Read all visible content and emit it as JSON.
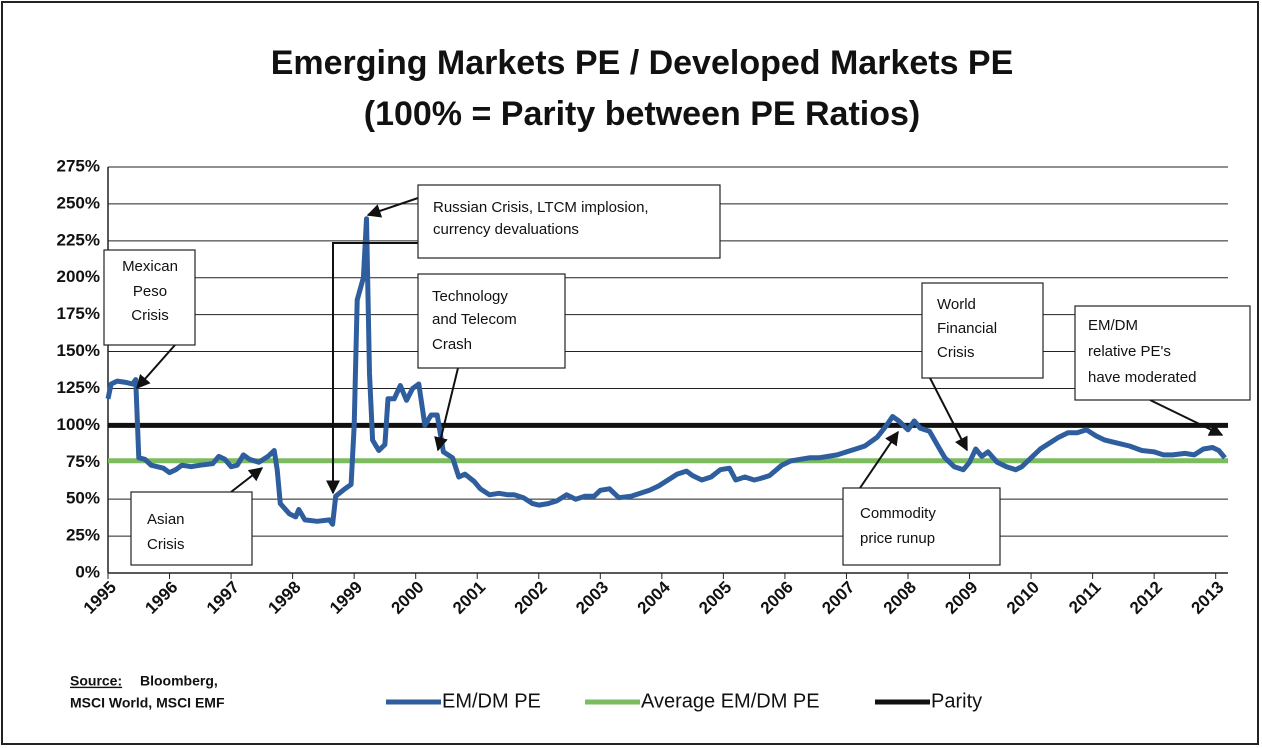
{
  "chart_data": {
    "type": "line",
    "title": "Emerging Markets PE / Developed Markets PE",
    "subtitle": "(100% = Parity between PE Ratios)",
    "xlim": [
      1995,
      2013.2
    ],
    "xticks": [
      1995,
      1996,
      1997,
      1998,
      1999,
      2000,
      2001,
      2002,
      2003,
      2004,
      2005,
      2006,
      2007,
      2008,
      2009,
      2010,
      2011,
      2012,
      2013
    ],
    "ylim": [
      0,
      275
    ],
    "yticks": [
      {
        "value": 0,
        "label": "0%"
      },
      {
        "value": 25,
        "label": "25%"
      },
      {
        "value": 50,
        "label": "50%"
      },
      {
        "value": 75,
        "label": "75%"
      },
      {
        "value": 100,
        "label": "100%"
      },
      {
        "value": 125,
        "label": "125%"
      },
      {
        "value": 150,
        "label": "150%"
      },
      {
        "value": 175,
        "label": "175%"
      },
      {
        "value": 200,
        "label": "200%"
      },
      {
        "value": 225,
        "label": "225%"
      },
      {
        "value": 250,
        "label": "250%"
      },
      {
        "value": 275,
        "label": "275%"
      }
    ],
    "grid": true,
    "series": [
      {
        "name": "EM/DM PE",
        "color": "#2f5e9e",
        "x": [
          1995.0,
          1995.05,
          1995.15,
          1995.3,
          1995.4,
          1995.45,
          1995.5,
          1995.6,
          1995.7,
          1995.9,
          1996.0,
          1996.1,
          1996.2,
          1996.35,
          1996.5,
          1996.7,
          1996.8,
          1996.9,
          1997.0,
          1997.1,
          1997.2,
          1997.3,
          1997.45,
          1997.6,
          1997.7,
          1997.75,
          1997.8,
          1997.95,
          1998.05,
          1998.1,
          1998.2,
          1998.4,
          1998.6,
          1998.65,
          1998.7,
          1998.85,
          1998.95,
          1999.0,
          1999.05,
          1999.15,
          1999.2,
          1999.25,
          1999.3,
          1999.4,
          1999.5,
          1999.55,
          1999.65,
          1999.75,
          1999.85,
          1999.95,
          2000.05,
          2000.15,
          2000.25,
          2000.35,
          2000.45,
          2000.6,
          2000.7,
          2000.8,
          2000.95,
          2001.05,
          2001.2,
          2001.35,
          2001.5,
          2001.6,
          2001.75,
          2001.9,
          2002.0,
          2002.15,
          2002.3,
          2002.45,
          2002.6,
          2002.75,
          2002.9,
          2003.0,
          2003.15,
          2003.3,
          2003.5,
          2003.65,
          2003.8,
          2003.95,
          2004.1,
          2004.25,
          2004.4,
          2004.5,
          2004.65,
          2004.8,
          2004.95,
          2005.1,
          2005.2,
          2005.35,
          2005.5,
          2005.6,
          2005.75,
          2005.95,
          2006.1,
          2006.25,
          2006.4,
          2006.55,
          2006.7,
          2006.85,
          2007.0,
          2007.15,
          2007.3,
          2007.5,
          2007.65,
          2007.75,
          2007.85,
          2008.0,
          2008.1,
          2008.2,
          2008.35,
          2008.5,
          2008.6,
          2008.75,
          2008.9,
          2009.0,
          2009.1,
          2009.2,
          2009.3,
          2009.45,
          2009.6,
          2009.75,
          2009.85,
          2010.0,
          2010.15,
          2010.3,
          2010.45,
          2010.6,
          2010.75,
          2010.9,
          2011.05,
          2011.2,
          2011.4,
          2011.6,
          2011.8,
          2012.0,
          2012.15,
          2012.3,
          2012.5,
          2012.65,
          2012.8,
          2012.95,
          2013.05,
          2013.15
        ],
        "values": [
          118,
          128,
          130,
          129,
          128,
          131,
          78,
          77,
          73,
          71,
          68,
          70,
          73,
          72,
          73,
          74,
          79,
          77,
          72,
          73,
          80,
          77,
          75,
          79,
          83,
          70,
          47,
          40,
          38,
          43,
          36,
          35,
          36,
          33,
          52,
          57,
          60,
          100,
          185,
          200,
          240,
          135,
          90,
          83,
          87,
          118,
          118,
          127,
          117,
          125,
          128,
          100,
          107,
          107,
          82,
          78,
          65,
          67,
          62,
          57,
          53,
          54,
          53,
          53,
          51,
          47,
          46,
          47,
          49,
          53,
          50,
          52,
          52,
          56,
          57,
          51,
          52,
          54,
          56,
          59,
          63,
          67,
          69,
          66,
          63,
          65,
          70,
          71,
          63,
          65,
          63,
          64,
          66,
          73,
          76,
          77,
          78,
          78,
          79,
          80,
          82,
          84,
          86,
          92,
          100,
          106,
          103,
          97,
          103,
          98,
          96,
          85,
          78,
          72,
          70,
          75,
          84,
          79,
          82,
          75,
          72,
          70,
          72,
          78,
          84,
          88,
          92,
          95,
          95,
          97,
          93,
          90,
          88,
          86,
          83,
          82,
          80,
          80,
          81,
          80,
          84,
          85,
          83,
          78
        ]
      },
      {
        "name": "Average EM/DM PE",
        "color": "#7dbb5f",
        "x": [
          1995,
          2013.2
        ],
        "values": [
          76,
          76
        ]
      },
      {
        "name": "Parity",
        "color": "#111111",
        "x": [
          1995,
          2013.2
        ],
        "values": [
          100,
          100
        ]
      }
    ],
    "annotations": [
      {
        "lines": [
          "Mexican",
          "Peso",
          "Crisis"
        ]
      },
      {
        "lines": [
          "Russian Crisis, LTCM implosion,",
          "currency devaluations"
        ]
      },
      {
        "lines": [
          "Asian",
          "Crisis"
        ]
      },
      {
        "lines": [
          "Technology",
          "and Telecom",
          "Crash"
        ]
      },
      {
        "lines": [
          "World",
          "Financial",
          "Crisis"
        ]
      },
      {
        "lines": [
          "EM/DM",
          "relative PE's",
          "have moderated"
        ]
      },
      {
        "lines": [
          "Commodity",
          "price runup"
        ]
      }
    ],
    "source_label": "Source:",
    "source_lines": [
      "Bloomberg,",
      "MSCI World, MSCI EMF"
    ]
  }
}
